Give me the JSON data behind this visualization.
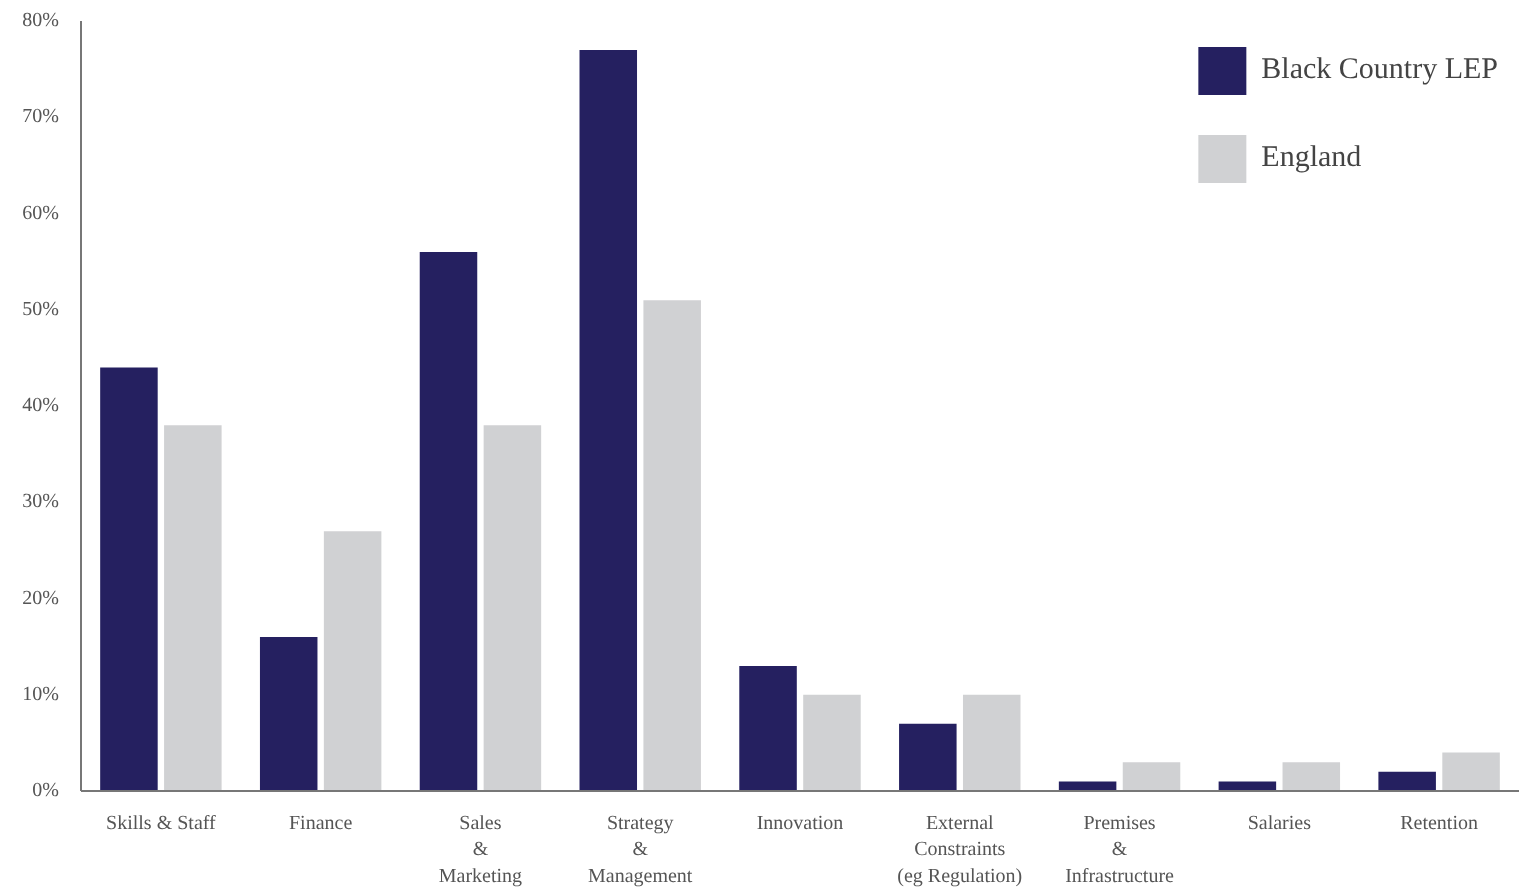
{
  "chart_data": {
    "type": "bar",
    "categories": [
      "Skills & Staff",
      "Finance",
      "Sales\n&\nMarketing",
      "Strategy\n&\nManagement",
      "Innovation",
      "External\nConstraints\n(eg Regulation)",
      "Premises\n&\nInfrastructure",
      "Salaries",
      "Retention"
    ],
    "series": [
      {
        "name": "Black Country LEP",
        "color": "#252060",
        "values": [
          44,
          16,
          56,
          77,
          13,
          7,
          1,
          1,
          2
        ]
      },
      {
        "name": "England",
        "color": "#d0d1d3",
        "values": [
          38,
          27,
          38,
          51,
          10,
          10,
          3,
          3,
          4
        ]
      }
    ],
    "ylim": [
      0,
      80
    ],
    "yticks": [
      {
        "value": 0,
        "label": "0%"
      },
      {
        "value": 10,
        "label": "10%"
      },
      {
        "value": 20,
        "label": "20%"
      },
      {
        "value": 30,
        "label": "30%"
      },
      {
        "value": 40,
        "label": "40%"
      },
      {
        "value": 50,
        "label": "50%"
      },
      {
        "value": 60,
        "label": "60%"
      },
      {
        "value": 70,
        "label": "70%"
      },
      {
        "value": 80,
        "label": "80%"
      }
    ],
    "grid": false,
    "legend": "top right"
  }
}
